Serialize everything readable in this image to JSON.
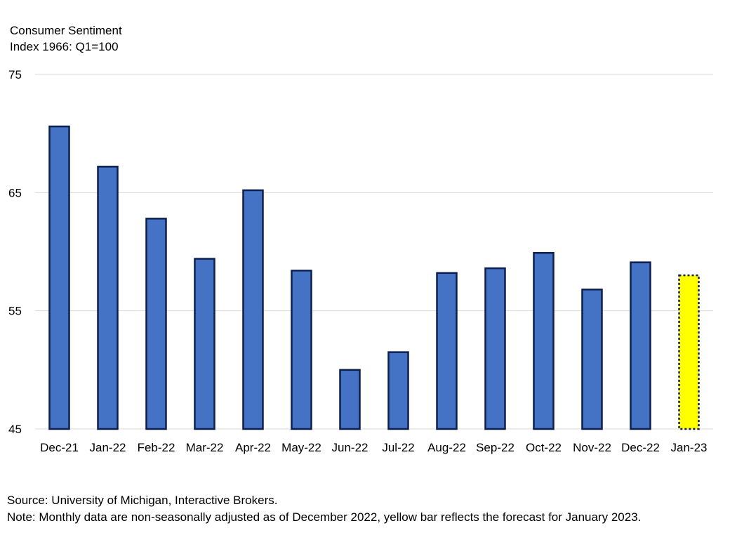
{
  "chart_data": {
    "type": "bar",
    "ylabel_line1": "Consumer Sentiment",
    "ylabel_line2": "Index 1966: Q1=100",
    "categories": [
      "Dec-21",
      "Jan-22",
      "Feb-22",
      "Mar-22",
      "Apr-22",
      "May-22",
      "Jun-22",
      "Jul-22",
      "Aug-22",
      "Sep-22",
      "Oct-22",
      "Nov-22",
      "Dec-22",
      "Jan-23"
    ],
    "values": [
      70.6,
      67.2,
      62.8,
      59.4,
      65.2,
      58.4,
      50.0,
      51.5,
      58.2,
      58.6,
      59.9,
      56.8,
      59.1,
      58.0
    ],
    "forecast_index": 13,
    "ylim": [
      45,
      75
    ],
    "yticks": [
      45,
      55,
      65,
      75
    ],
    "grid": true,
    "colors": {
      "bar": "#4472c4",
      "bar_border": "#0d1f4e",
      "forecast": "#ffff00",
      "grid": "#d9d9d9"
    }
  },
  "footer": {
    "source": "Source: University of Michigan, Interactive Brokers.",
    "note": "Note: Monthly data are non-seasonally adjusted as of December 2022, yellow bar reflects the forecast for January 2023."
  }
}
